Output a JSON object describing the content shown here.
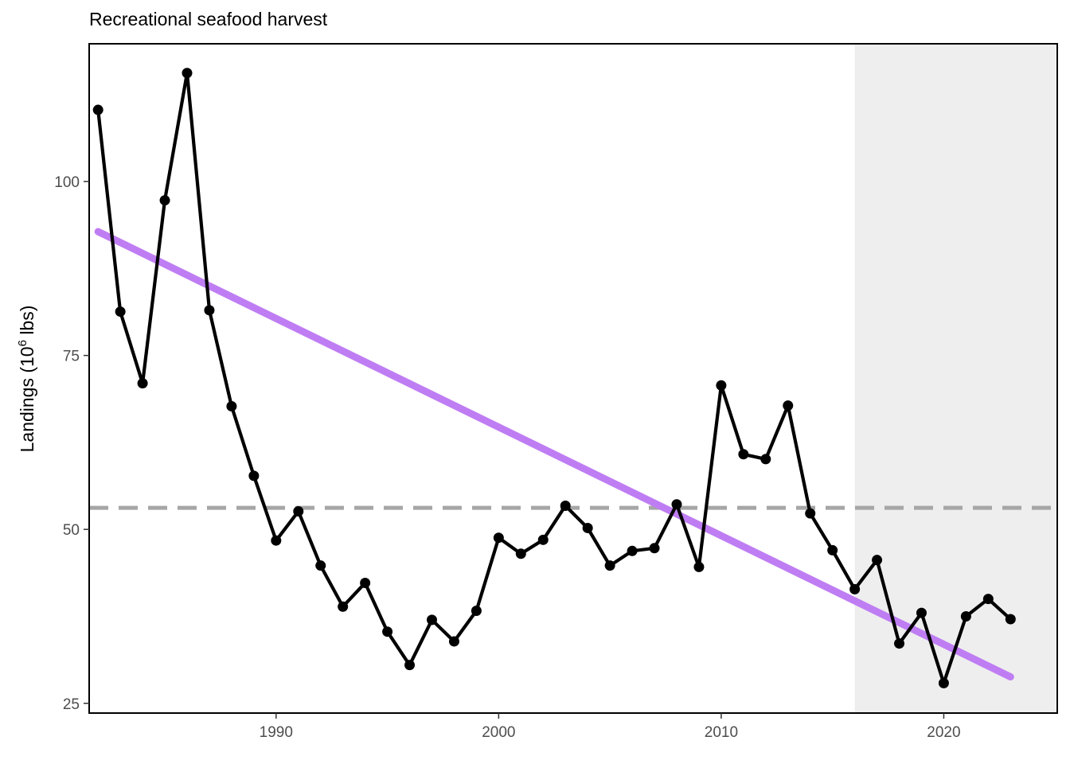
{
  "chart_data": {
    "type": "line",
    "title": "Recreational seafood harvest",
    "ylabel": {
      "prefix": "Landings (10",
      "superscript": "6",
      "suffix": " lbs)"
    },
    "xlabel": "",
    "xlim": [
      1981.6,
      2025.1
    ],
    "ylim": [
      23.6,
      119.8
    ],
    "x_ticks": [
      1990,
      2000,
      2010,
      2020
    ],
    "y_ticks": [
      25,
      50,
      75,
      100
    ],
    "grid": false,
    "series": [
      {
        "x": [
          1982,
          1983,
          1984,
          1985,
          1986,
          1987,
          1988,
          1989,
          1990,
          1991,
          1992,
          1993,
          1994,
          1995,
          1996,
          1997,
          1998,
          1999,
          2000,
          2001,
          2002,
          2003,
          2004,
          2005,
          2006,
          2007,
          2008,
          2009,
          2010,
          2011,
          2012,
          2013,
          2014,
          2015,
          2016,
          2017,
          2018,
          2019,
          2020,
          2021,
          2022,
          2023
        ],
        "values": [
          110.3,
          81.3,
          71.0,
          97.3,
          115.6,
          81.5,
          67.7,
          57.7,
          48.4,
          52.6,
          44.8,
          38.9,
          42.3,
          35.3,
          30.5,
          37.0,
          33.9,
          38.3,
          48.8,
          46.5,
          48.5,
          53.4,
          50.2,
          44.8,
          46.9,
          47.3,
          53.6,
          44.6,
          70.7,
          60.8,
          60.1,
          67.8,
          52.3,
          47.0,
          41.4,
          45.6,
          33.6,
          38.0,
          27.9,
          37.5,
          40.0,
          37.1
        ],
        "color": "#000000"
      }
    ],
    "trend_line": {
      "x": [
        1982,
        2023
      ],
      "y": [
        92.8,
        28.8
      ],
      "color": "#bf7df3"
    },
    "mean_line": {
      "y": 53.1,
      "color": "#a6a6a6",
      "style": "dashed"
    },
    "shaded_region": {
      "x": [
        2016,
        2025.1
      ],
      "color": "#eeeeee"
    }
  }
}
